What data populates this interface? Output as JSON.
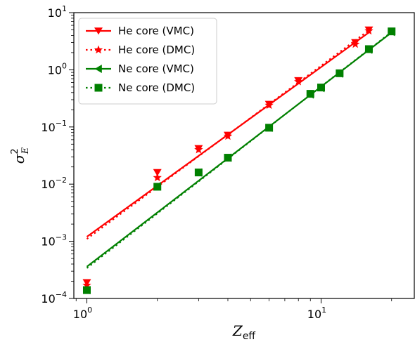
{
  "chart_data": {
    "type": "scatter",
    "xscale": "log",
    "yscale": "log",
    "xlim": [
      0.88,
      25
    ],
    "ylim": [
      0.0001,
      10
    ],
    "x_ticks": [
      1,
      10
    ],
    "y_ticks": [
      0.0001,
      0.001,
      0.01,
      0.1,
      1,
      10
    ],
    "xlabel": {
      "main": "Z",
      "sub": "eff"
    },
    "ylabel": {
      "main": "σ",
      "sup": "2",
      "sub": "E"
    },
    "grid": false,
    "legend_position": "top-left",
    "series": [
      {
        "name": "He core (VMC)",
        "color": "#ff0000",
        "marker": "triangle-down",
        "line_style": "solid",
        "x": [
          1,
          2,
          3,
          4,
          6,
          8,
          14,
          16
        ],
        "y": [
          0.00019,
          0.016,
          0.042,
          0.072,
          0.25,
          0.65,
          3.0,
          5.0
        ],
        "fit": {
          "x_start": 1,
          "y_start": 0.0012,
          "x_end": 16,
          "y_end": 4.5
        }
      },
      {
        "name": "He core (DMC)",
        "color": "#ff0000",
        "marker": "star",
        "line_style": "dotted",
        "x": [
          1,
          2,
          3,
          4,
          6,
          8,
          14,
          16
        ],
        "y": [
          0.00017,
          0.013,
          0.04,
          0.069,
          0.24,
          0.62,
          2.8,
          4.8
        ],
        "fit": {
          "x_start": 1,
          "y_start": 0.0011,
          "x_end": 16,
          "y_end": 4.9
        }
      },
      {
        "name": "Ne core (VMC)",
        "color": "#008000",
        "marker": "triangle-left",
        "line_style": "solid",
        "x": [
          1,
          2,
          3,
          4,
          6,
          9,
          10,
          12,
          16,
          20
        ],
        "y": [
          0.00014,
          0.0092,
          0.016,
          0.029,
          0.097,
          0.37,
          0.48,
          0.86,
          2.25,
          4.6
        ],
        "fit": {
          "x_start": 1,
          "y_start": 0.00036,
          "x_end": 20,
          "y_end": 4.5
        }
      },
      {
        "name": "Ne core (DMC)",
        "color": "#008000",
        "marker": "square",
        "line_style": "dotted",
        "x": [
          1,
          2,
          3,
          4,
          6,
          9,
          10,
          12,
          16,
          20
        ],
        "y": [
          0.00014,
          0.009,
          0.016,
          0.029,
          0.097,
          0.38,
          0.49,
          0.87,
          2.3,
          4.7
        ],
        "fit": {
          "x_start": 1,
          "y_start": 0.00034,
          "x_end": 20,
          "y_end": 4.6
        }
      }
    ]
  }
}
